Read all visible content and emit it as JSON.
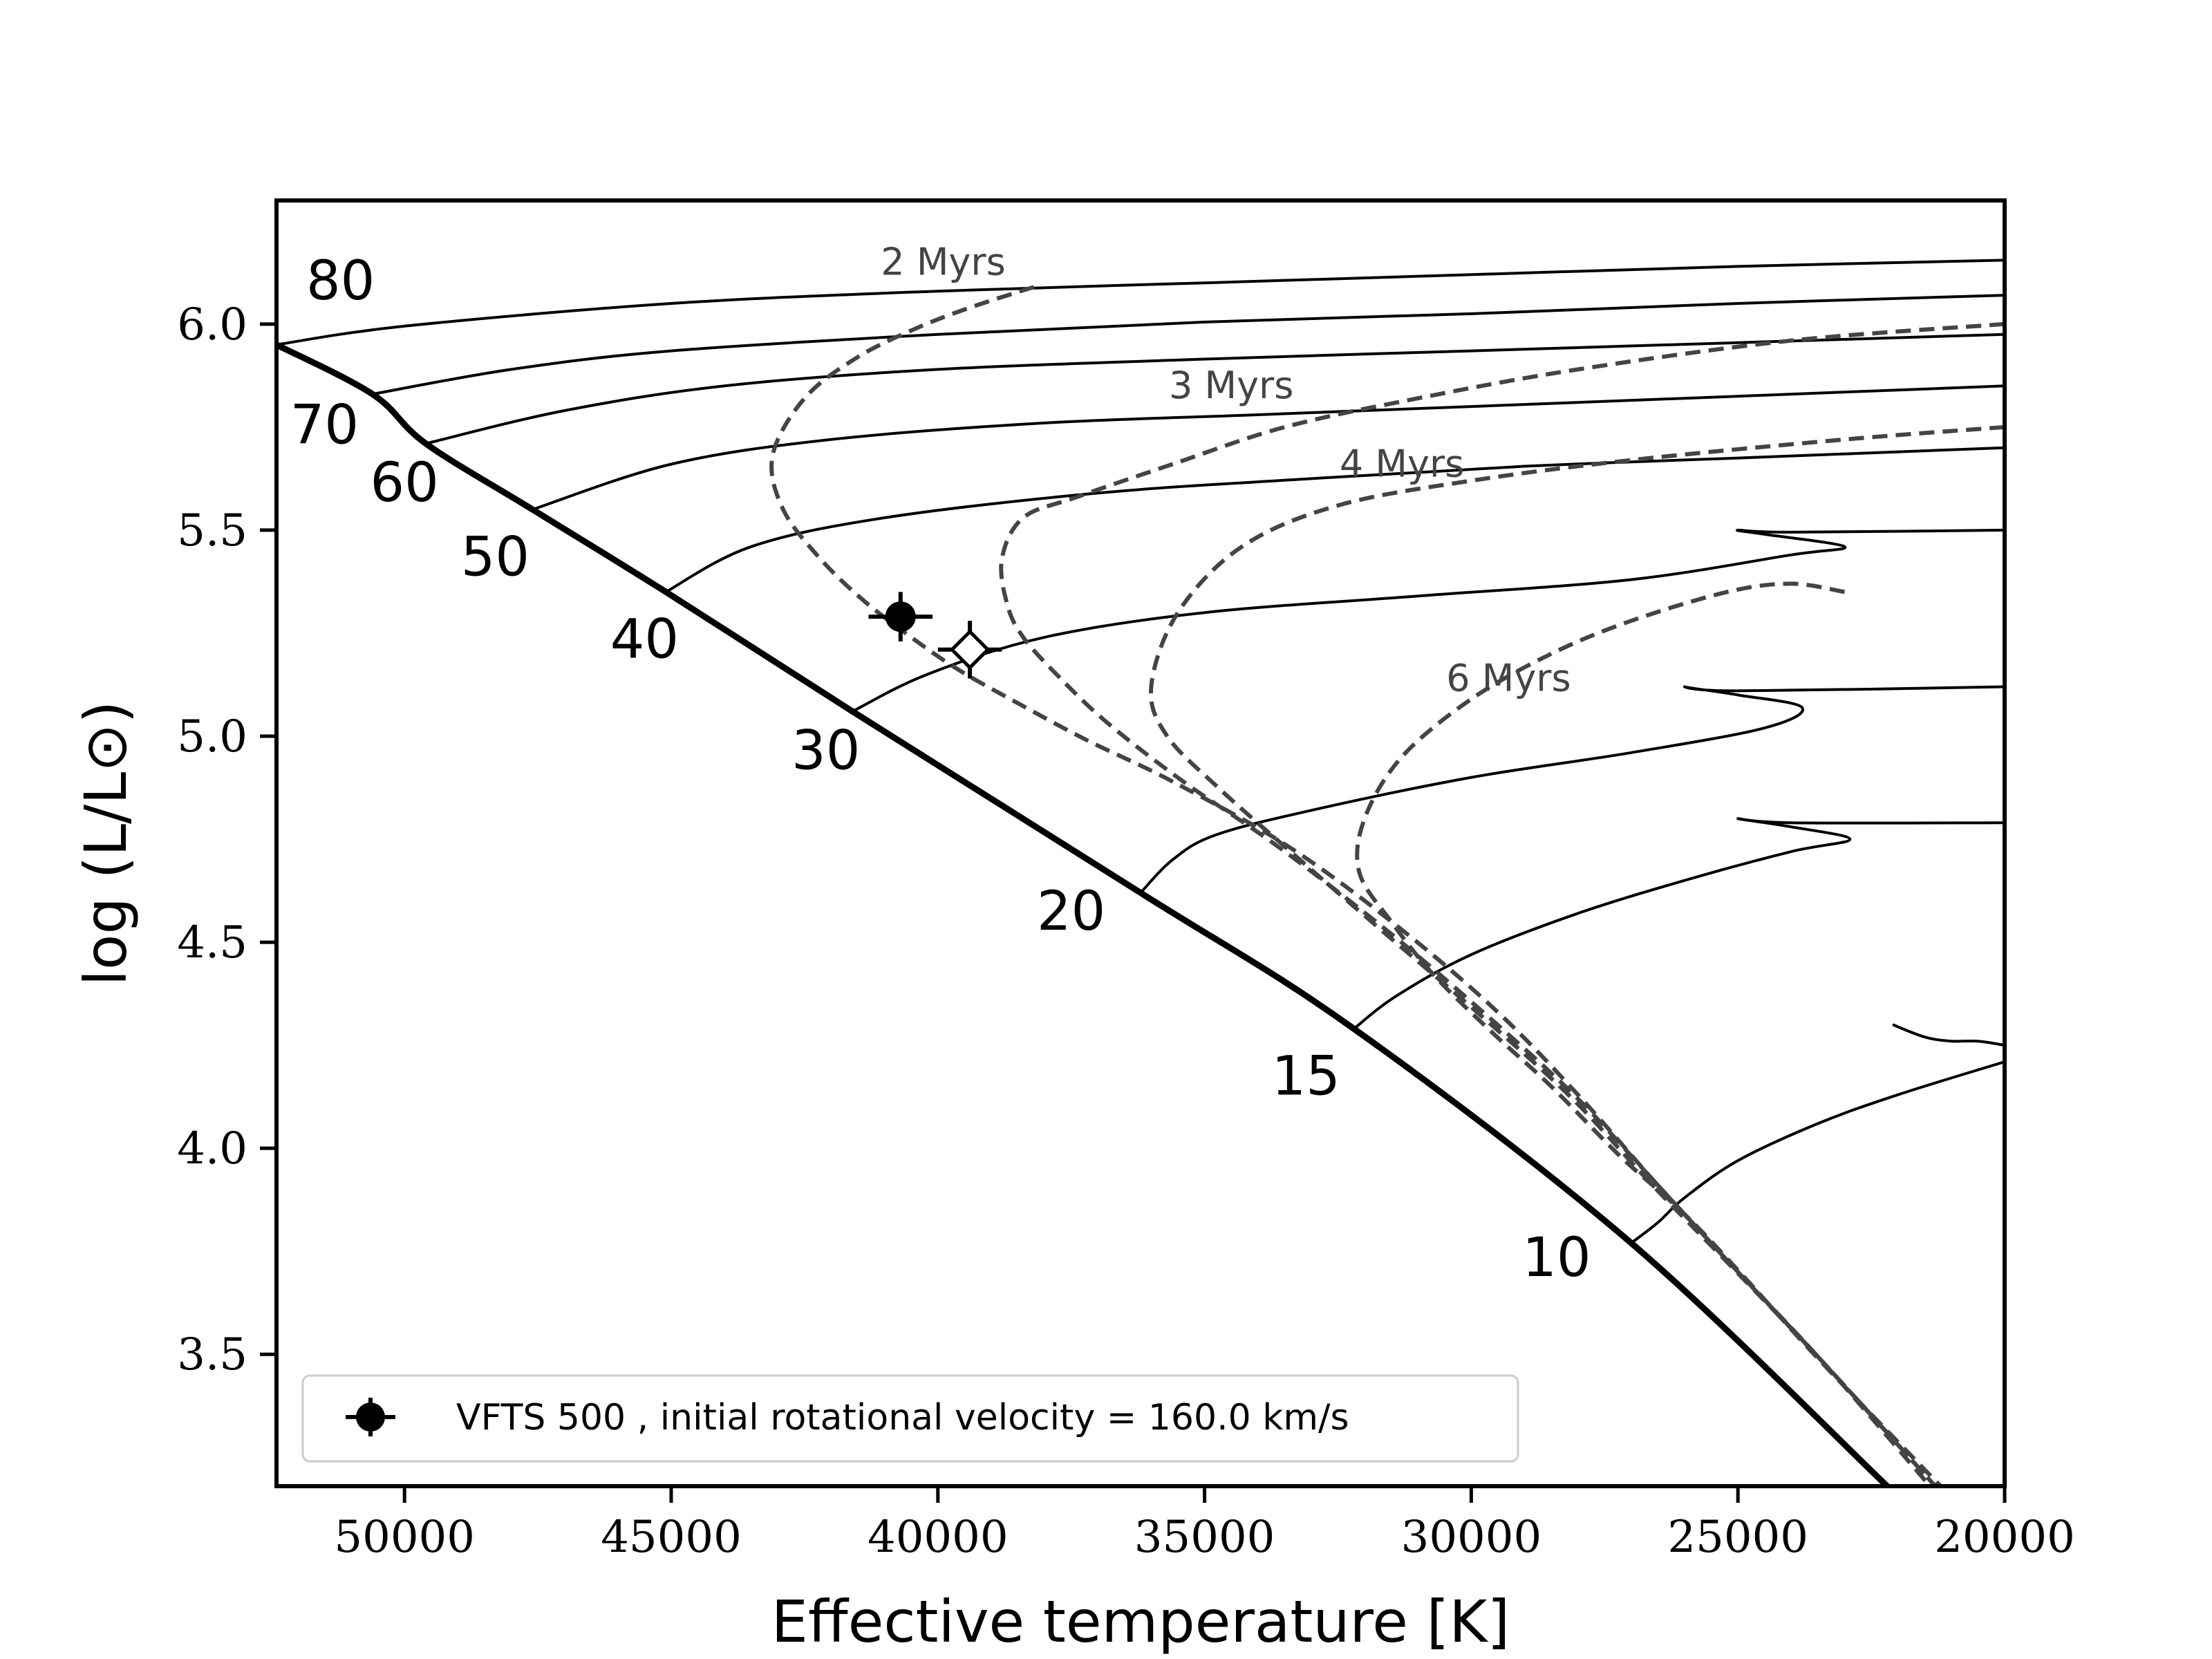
{
  "chart_data": {
    "type": "line",
    "title": "",
    "xlabel": "Effective temperature [K]",
    "ylabel": "log (L/L⊙)",
    "xlim": [
      52400,
      20000
    ],
    "ylim": [
      3.18,
      6.3
    ],
    "xticks": [
      50000,
      45000,
      40000,
      35000,
      30000,
      25000,
      20000
    ],
    "yticks": [
      3.5,
      4.0,
      4.5,
      5.0,
      5.5,
      6.0
    ],
    "zams": [
      [
        52400,
        5.95
      ],
      [
        50600,
        5.83
      ],
      [
        49600,
        5.71
      ],
      [
        47600,
        5.55
      ],
      [
        45100,
        5.35
      ],
      [
        41600,
        5.06
      ],
      [
        36200,
        4.62
      ],
      [
        32200,
        4.29
      ],
      [
        27000,
        3.77
      ],
      [
        22200,
        3.18
      ]
    ],
    "tracks": [
      {
        "mass": "80",
        "points": [
          [
            52400,
            5.95
          ],
          [
            50000,
            5.995
          ],
          [
            45000,
            6.05
          ],
          [
            40000,
            6.08
          ],
          [
            35000,
            6.1
          ],
          [
            30000,
            6.12
          ],
          [
            25000,
            6.14
          ],
          [
            20000,
            6.155
          ]
        ]
      },
      {
        "mass": "70",
        "points": [
          [
            50600,
            5.83
          ],
          [
            48000,
            5.89
          ],
          [
            45000,
            5.935
          ],
          [
            40000,
            5.975
          ],
          [
            35000,
            6.005
          ],
          [
            30000,
            6.025
          ],
          [
            25000,
            6.05
          ],
          [
            20000,
            6.07
          ]
        ]
      },
      {
        "mass": "60",
        "points": [
          [
            49600,
            5.71
          ],
          [
            47000,
            5.79
          ],
          [
            44000,
            5.85
          ],
          [
            40000,
            5.89
          ],
          [
            35000,
            5.915
          ],
          [
            30000,
            5.935
          ],
          [
            25000,
            5.955
          ],
          [
            20000,
            5.975
          ]
        ]
      },
      {
        "mass": "50",
        "points": [
          [
            47600,
            5.55
          ],
          [
            45000,
            5.66
          ],
          [
            42000,
            5.72
          ],
          [
            38000,
            5.76
          ],
          [
            34000,
            5.78
          ],
          [
            30000,
            5.8
          ],
          [
            25000,
            5.825
          ],
          [
            20000,
            5.85
          ]
        ]
      },
      {
        "mass": "40",
        "points": [
          [
            45100,
            5.35
          ],
          [
            43500,
            5.46
          ],
          [
            41000,
            5.53
          ],
          [
            37000,
            5.59
          ],
          [
            33000,
            5.625
          ],
          [
            29000,
            5.655
          ],
          [
            25000,
            5.675
          ],
          [
            20000,
            5.7
          ]
        ]
      },
      {
        "mass": "30",
        "points": [
          [
            41600,
            5.06
          ],
          [
            40200,
            5.15
          ],
          [
            38000,
            5.24
          ],
          [
            35000,
            5.3
          ],
          [
            31000,
            5.34
          ],
          [
            27000,
            5.38
          ],
          [
            24000,
            5.44
          ],
          [
            23000,
            5.46
          ],
          [
            24500,
            5.49
          ],
          [
            25000,
            5.5
          ],
          [
            24000,
            5.495
          ],
          [
            20000,
            5.5
          ]
        ]
      },
      {
        "mass": "20",
        "points": [
          [
            36200,
            4.62
          ],
          [
            35600,
            4.7
          ],
          [
            34800,
            4.76
          ],
          [
            33000,
            4.82
          ],
          [
            30000,
            4.9
          ],
          [
            27000,
            4.96
          ],
          [
            24500,
            5.02
          ],
          [
            23800,
            5.07
          ],
          [
            25000,
            5.1
          ],
          [
            26000,
            5.12
          ],
          [
            25000,
            5.11
          ],
          [
            20000,
            5.12
          ]
        ]
      },
      {
        "mass": "15",
        "points": [
          [
            32200,
            4.29
          ],
          [
            31400,
            4.37
          ],
          [
            30000,
            4.47
          ],
          [
            28000,
            4.57
          ],
          [
            26000,
            4.65
          ],
          [
            24000,
            4.72
          ],
          [
            22900,
            4.75
          ],
          [
            24000,
            4.78
          ],
          [
            25000,
            4.8
          ],
          [
            24000,
            4.79
          ],
          [
            20000,
            4.79
          ]
        ]
      },
      {
        "mass": "10",
        "points": [
          [
            27000,
            3.77
          ],
          [
            26500,
            3.82
          ],
          [
            26000,
            3.88
          ],
          [
            25000,
            3.97
          ],
          [
            23500,
            4.06
          ],
          [
            22000,
            4.13
          ],
          [
            20000,
            4.21
          ]
        ]
      }
    ],
    "track_extras": [
      {
        "mass": "10",
        "points": [
          [
            22100,
            4.3
          ],
          [
            21500,
            4.27
          ],
          [
            21000,
            4.26
          ],
          [
            20500,
            4.26
          ],
          [
            20000,
            4.25
          ]
        ]
      }
    ],
    "isochrones": [
      {
        "label": "2 Myrs",
        "points": [
          [
            38200,
            6.09
          ],
          [
            39400,
            6.04
          ],
          [
            40400,
            5.99
          ],
          [
            41500,
            5.92
          ],
          [
            42500,
            5.82
          ],
          [
            43100,
            5.68
          ],
          [
            42900,
            5.55
          ],
          [
            42200,
            5.43
          ],
          [
            41400,
            5.33
          ],
          [
            40500,
            5.24
          ],
          [
            39600,
            5.16
          ],
          [
            38500,
            5.08
          ],
          [
            37200,
            4.99
          ],
          [
            35600,
            4.89
          ],
          [
            33400,
            4.73
          ],
          [
            31300,
            4.53
          ],
          [
            29500,
            4.33
          ],
          [
            28000,
            4.13
          ],
          [
            26500,
            3.91
          ],
          [
            25000,
            3.7
          ],
          [
            23400,
            3.48
          ],
          [
            21400,
            3.18
          ]
        ]
      },
      {
        "label": "3 Myrs",
        "points": [
          [
            20000,
            6.0
          ],
          [
            24000,
            5.96
          ],
          [
            28000,
            5.89
          ],
          [
            31000,
            5.82
          ],
          [
            33500,
            5.75
          ],
          [
            35600,
            5.66
          ],
          [
            37400,
            5.58
          ],
          [
            38400,
            5.53
          ],
          [
            38800,
            5.43
          ],
          [
            38700,
            5.32
          ],
          [
            38400,
            5.24
          ],
          [
            37700,
            5.14
          ],
          [
            36800,
            5.03
          ],
          [
            35400,
            4.89
          ],
          [
            33600,
            4.73
          ],
          [
            31500,
            4.52
          ],
          [
            29600,
            4.31
          ],
          [
            28000,
            4.12
          ],
          [
            26500,
            3.91
          ],
          [
            25000,
            3.7
          ],
          [
            23400,
            3.48
          ],
          [
            21300,
            3.18
          ]
        ]
      },
      {
        "label": "4 Myrs",
        "points": [
          [
            20000,
            5.75
          ],
          [
            23000,
            5.72
          ],
          [
            27000,
            5.67
          ],
          [
            30000,
            5.62
          ],
          [
            32500,
            5.56
          ],
          [
            34300,
            5.46
          ],
          [
            35500,
            5.3
          ],
          [
            36000,
            5.12
          ],
          [
            35700,
            5.0
          ],
          [
            34700,
            4.87
          ],
          [
            33300,
            4.71
          ],
          [
            31600,
            4.52
          ],
          [
            29800,
            4.32
          ],
          [
            28100,
            4.12
          ],
          [
            26600,
            3.91
          ],
          [
            25100,
            3.71
          ],
          [
            23400,
            3.48
          ],
          [
            21300,
            3.18
          ]
        ]
      },
      {
        "label": "6 Myrs",
        "points": [
          [
            23000,
            5.35
          ],
          [
            24000,
            5.37
          ],
          [
            25200,
            5.35
          ],
          [
            27000,
            5.28
          ],
          [
            28500,
            5.2
          ],
          [
            30000,
            5.09
          ],
          [
            31300,
            4.95
          ],
          [
            32000,
            4.8
          ],
          [
            32100,
            4.67
          ],
          [
            31500,
            4.55
          ],
          [
            30700,
            4.42
          ],
          [
            29600,
            4.28
          ],
          [
            28500,
            4.15
          ],
          [
            27200,
            3.98
          ],
          [
            26000,
            3.84
          ],
          [
            24900,
            3.69
          ],
          [
            23500,
            3.49
          ],
          [
            21200,
            3.18
          ]
        ]
      }
    ],
    "isochrone_labels": [
      {
        "text": "2 Myrs",
        "x": 39900,
        "y": 6.12
      },
      {
        "text": "3 Myrs",
        "x": 34500,
        "y": 5.82
      },
      {
        "text": "4 Myrs",
        "x": 31300,
        "y": 5.63
      },
      {
        "text": "6 Myrs",
        "x": 29300,
        "y": 5.11
      }
    ],
    "mass_labels": [
      {
        "text": "80",
        "x": 51200,
        "y": 6.06
      },
      {
        "text": "70",
        "x": 51500,
        "y": 5.71
      },
      {
        "text": "60",
        "x": 50000,
        "y": 5.57
      },
      {
        "text": "50",
        "x": 48300,
        "y": 5.39
      },
      {
        "text": "40",
        "x": 45500,
        "y": 5.19
      },
      {
        "text": "30",
        "x": 42100,
        "y": 4.92
      },
      {
        "text": "20",
        "x": 37500,
        "y": 4.53
      },
      {
        "text": "15",
        "x": 33100,
        "y": 4.13
      },
      {
        "text": "10",
        "x": 28400,
        "y": 3.69
      }
    ],
    "observed": {
      "teff": 40700,
      "teff_err": 600,
      "logL": 5.29,
      "logL_err": 0.06
    },
    "model_point": {
      "teff": 39400,
      "teff_err": 600,
      "logL": 5.21,
      "logL_err": 0.07
    },
    "legend": {
      "label": "VFTS 500 , initial rotational velocity = 160.0 km/s",
      "position": "lower-left"
    },
    "colors": {
      "tracks": "#000000",
      "isochrones": "#444444",
      "axes": "#000000",
      "background": "#ffffff"
    }
  }
}
